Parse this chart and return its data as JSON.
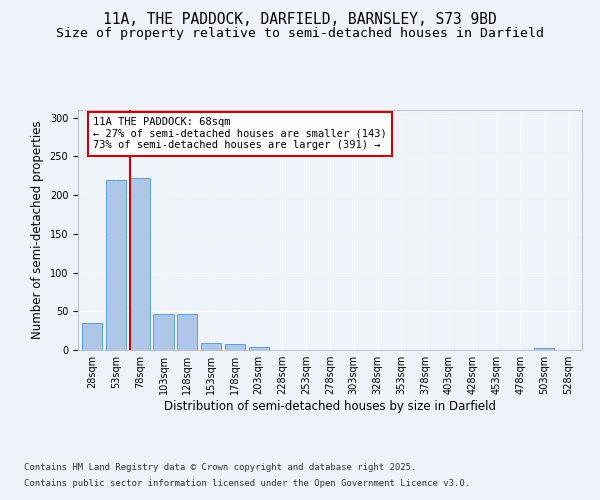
{
  "title_line1": "11A, THE PADDOCK, DARFIELD, BARNSLEY, S73 9BD",
  "title_line2": "Size of property relative to semi-detached houses in Darfield",
  "xlabel": "Distribution of semi-detached houses by size in Darfield",
  "ylabel": "Number of semi-detached properties",
  "categories": [
    "28sqm",
    "53sqm",
    "78sqm",
    "103sqm",
    "128sqm",
    "153sqm",
    "178sqm",
    "203sqm",
    "228sqm",
    "253sqm",
    "278sqm",
    "303sqm",
    "328sqm",
    "353sqm",
    "378sqm",
    "403sqm",
    "428sqm",
    "453sqm",
    "478sqm",
    "503sqm",
    "528sqm"
  ],
  "values": [
    35,
    220,
    222,
    47,
    47,
    9,
    8,
    4,
    0,
    0,
    0,
    0,
    0,
    0,
    0,
    0,
    0,
    0,
    0,
    2,
    0
  ],
  "bar_color": "#aec6e8",
  "bar_edge_color": "#5a9fd4",
  "marker_index": 2,
  "marker_color": "#cc0000",
  "ylim": [
    0,
    310
  ],
  "yticks": [
    0,
    50,
    100,
    150,
    200,
    250,
    300
  ],
  "annotation_title": "11A THE PADDOCK: 68sqm",
  "annotation_line2": "← 27% of semi-detached houses are smaller (143)",
  "annotation_line3": "73% of semi-detached houses are larger (391) →",
  "annotation_box_color": "#cc0000",
  "footer_line1": "Contains HM Land Registry data © Crown copyright and database right 2025.",
  "footer_line2": "Contains public sector information licensed under the Open Government Licence v3.0.",
  "bg_color": "#eef2f9",
  "grid_color": "#ffffff",
  "title_fontsize": 10.5,
  "subtitle_fontsize": 9.5,
  "axis_label_fontsize": 8.5,
  "tick_fontsize": 7,
  "annotation_fontsize": 7.5,
  "footer_fontsize": 6.5
}
